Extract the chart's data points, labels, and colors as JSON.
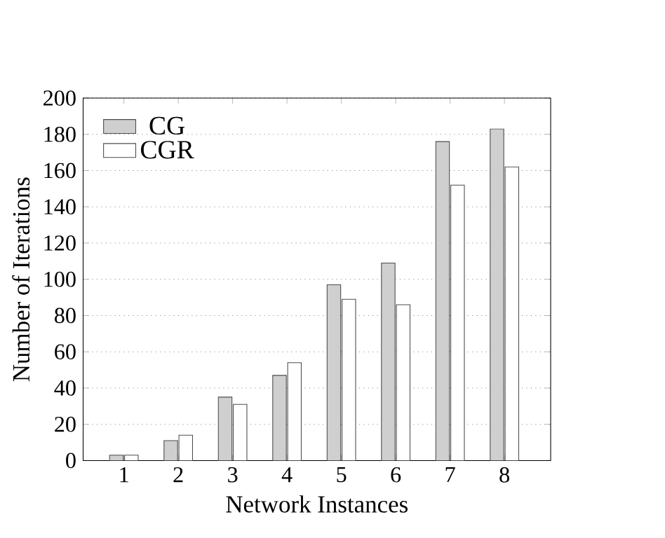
{
  "chart_data": {
    "type": "bar",
    "xlabel": "Network Instances",
    "ylabel": "Number of Iterations",
    "categories": [
      "1",
      "2",
      "3",
      "4",
      "5",
      "6",
      "7",
      "8"
    ],
    "series": [
      {
        "name": "CG",
        "color": "#cfcfcf",
        "values": [
          3,
          11,
          35,
          47,
          97,
          109,
          176,
          183
        ]
      },
      {
        "name": "CGR",
        "color": "#ffffff",
        "values": [
          3,
          14,
          31,
          54,
          89,
          86,
          152,
          162
        ]
      }
    ],
    "ylim": [
      0,
      200
    ],
    "yticks": [
      0,
      20,
      40,
      60,
      80,
      100,
      120,
      140,
      160,
      180,
      200
    ],
    "grid": "y",
    "legend": "top left"
  }
}
